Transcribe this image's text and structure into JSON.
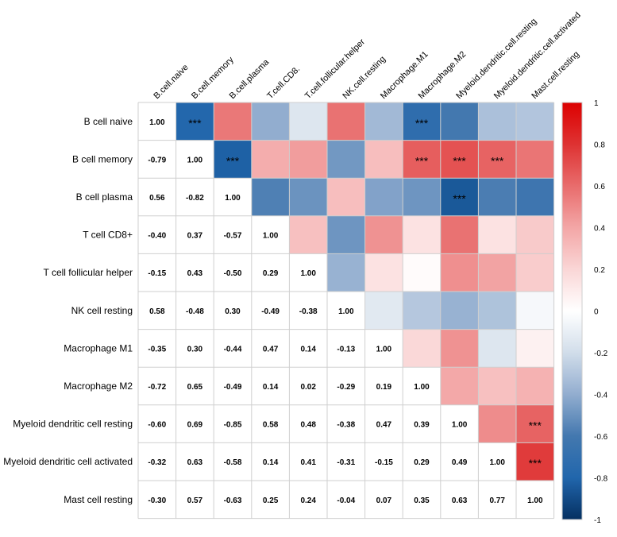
{
  "chart_data": {
    "type": "heatmap",
    "title": "",
    "rows": [
      "B cell naive",
      "B cell memory",
      "B cell plasma",
      "T cell CD8+",
      "T cell follicular helper",
      "NK cell resting",
      "Macrophage M1",
      "Macrophage M2",
      "Myeloid dendritic cell resting",
      "Myeloid dendritic cell activated",
      "Mast cell resting"
    ],
    "columns": [
      "B.cell.naive",
      "B.cell.memory",
      "B.cell.plasma",
      "T.cell.CD8.",
      "T.cell.follicular.helper",
      "NK.cell.resting",
      "Macrophage.M1",
      "Macrophage.M2",
      "Myeloid.dendritic.cell.resting",
      "Myeloid.dendritic.cell.activated",
      "Mast.cell.resting"
    ],
    "matrix": [
      [
        1.0,
        -0.79,
        0.56,
        -0.4,
        -0.15,
        0.58,
        -0.35,
        -0.72,
        -0.6,
        -0.32,
        -0.3
      ],
      [
        -0.79,
        1.0,
        -0.82,
        0.37,
        0.43,
        -0.48,
        0.3,
        0.65,
        0.69,
        0.63,
        0.57
      ],
      [
        0.56,
        -0.82,
        1.0,
        -0.57,
        -0.5,
        0.3,
        -0.44,
        -0.49,
        -0.85,
        -0.58,
        -0.63
      ],
      [
        -0.4,
        0.37,
        -0.57,
        1.0,
        0.29,
        -0.49,
        0.47,
        0.14,
        0.58,
        0.14,
        0.25
      ],
      [
        -0.15,
        0.43,
        -0.5,
        0.29,
        1.0,
        -0.38,
        0.14,
        0.02,
        0.48,
        0.41,
        0.24
      ],
      [
        0.58,
        -0.48,
        0.3,
        -0.49,
        -0.38,
        1.0,
        -0.13,
        -0.29,
        -0.38,
        -0.31,
        -0.04
      ],
      [
        -0.35,
        0.3,
        -0.44,
        0.47,
        0.14,
        -0.13,
        1.0,
        0.19,
        0.47,
        -0.15,
        0.07
      ],
      [
        -0.72,
        0.65,
        -0.49,
        0.14,
        0.02,
        -0.29,
        0.19,
        1.0,
        0.39,
        0.29,
        0.35
      ],
      [
        -0.6,
        0.69,
        -0.85,
        0.58,
        0.48,
        -0.38,
        0.47,
        0.39,
        1.0,
        0.49,
        0.63
      ],
      [
        -0.32,
        0.63,
        -0.58,
        0.14,
        0.41,
        -0.31,
        -0.15,
        0.29,
        0.49,
        1.0,
        0.77
      ],
      [
        -0.3,
        0.57,
        -0.63,
        0.25,
        0.24,
        -0.04,
        0.07,
        0.35,
        0.63,
        0.77,
        1.0
      ]
    ],
    "lower_triangle": "numbers",
    "upper_triangle": "color",
    "significance": [
      {
        "row": 0,
        "col": 1,
        "label": "***"
      },
      {
        "row": 0,
        "col": 7,
        "label": "***"
      },
      {
        "row": 1,
        "col": 2,
        "label": "***"
      },
      {
        "row": 1,
        "col": 7,
        "label": "***"
      },
      {
        "row": 1,
        "col": 8,
        "label": "***"
      },
      {
        "row": 1,
        "col": 9,
        "label": "***"
      },
      {
        "row": 2,
        "col": 8,
        "label": "***"
      },
      {
        "row": 8,
        "col": 10,
        "label": "***"
      },
      {
        "row": 9,
        "col": 10,
        "label": "***"
      }
    ],
    "colorbar": {
      "range": [
        -1,
        1
      ],
      "ticks": [
        "1",
        "0.8",
        "0.6",
        "0.4",
        "0.2",
        "0",
        "-0.2",
        "-0.4",
        "-0.6",
        "-0.8",
        "-1"
      ],
      "tick_values": [
        1,
        0.8,
        0.6,
        0.4,
        0.2,
        0,
        -0.2,
        -0.4,
        -0.6,
        -0.8,
        -1
      ],
      "color_negative": "#053061",
      "color_mid": "#ffffff",
      "color_positive": "#dc0000"
    }
  }
}
